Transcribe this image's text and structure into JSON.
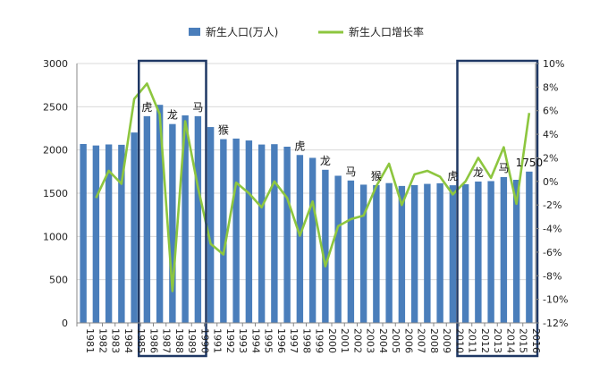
{
  "chart_data": {
    "type": "bar+line",
    "title": "",
    "legend": [
      {
        "name": "新生人口(万人)",
        "kind": "bar",
        "color": "#4a7ebb"
      },
      {
        "name": "新生人口增长率",
        "kind": "line",
        "color": "#8dc63f"
      }
    ],
    "categories": [
      "1981",
      "1982",
      "1983",
      "1984",
      "1985",
      "1986",
      "1987",
      "1988",
      "1989",
      "1990",
      "1991",
      "1992",
      "1993",
      "1994",
      "1995",
      "1996",
      "1997",
      "1998",
      "1999",
      "2000",
      "2001",
      "2002",
      "2003",
      "2004",
      "2005",
      "2006",
      "2007",
      "2008",
      "2009",
      "2010",
      "2011",
      "2012",
      "2013",
      "2014",
      "2015",
      "2016"
    ],
    "series": [
      {
        "name": "新生人口(万人)",
        "type": "bar",
        "axis": "left",
        "values": [
          2069,
          2052,
          2064,
          2060,
          2202,
          2391,
          2522,
          2300,
          2400,
          2391,
          2265,
          2125,
          2132,
          2110,
          2063,
          2067,
          2038,
          1942,
          1909,
          1771,
          1702,
          1647,
          1599,
          1593,
          1617,
          1584,
          1594,
          1608,
          1615,
          1592,
          1604,
          1635,
          1640,
          1687,
          1655,
          1750
        ]
      },
      {
        "name": "新生人口增长率",
        "type": "line",
        "axis": "right",
        "values": [
          null,
          -1.4,
          0.9,
          -0.2,
          7.0,
          8.3,
          5.7,
          -9.3,
          5.1,
          -0.5,
          -5.3,
          -6.2,
          -0.1,
          -1.0,
          -2.2,
          0.0,
          -1.4,
          -4.6,
          -1.7,
          -7.2,
          -3.8,
          -3.2,
          -2.9,
          -0.4,
          1.5,
          -2.0,
          0.6,
          0.9,
          0.4,
          -1.1,
          0.0,
          2.0,
          0.3,
          2.9,
          -1.9,
          5.8
        ]
      }
    ],
    "y_left": {
      "min": 0,
      "max": 3000,
      "step": 500,
      "ticks": [
        "0",
        "500",
        "1000",
        "1500",
        "2000",
        "2500",
        "3000"
      ]
    },
    "y_right": {
      "min": -12,
      "max": 10,
      "step": 2,
      "ticks": [
        "-12%",
        "-10%",
        "-8%",
        "-6%",
        "-4%",
        "-2%",
        "0%",
        "2%",
        "4%",
        "6%",
        "8%",
        "10%"
      ]
    },
    "grid": "horizontal",
    "legend_position": "top",
    "annotations": [
      {
        "text": "虎",
        "category": "1986"
      },
      {
        "text": "龙",
        "category": "1988"
      },
      {
        "text": "马",
        "category": "1990"
      },
      {
        "text": "猴",
        "category": "1992"
      },
      {
        "text": "虎",
        "category": "1998"
      },
      {
        "text": "龙",
        "category": "2000"
      },
      {
        "text": "马",
        "category": "2002"
      },
      {
        "text": "猴",
        "category": "2004"
      },
      {
        "text": "虎",
        "category": "2010"
      },
      {
        "text": "龙",
        "category": "2012"
      },
      {
        "text": "马",
        "category": "2014"
      },
      {
        "text": "1750",
        "category": "2016"
      }
    ],
    "highlight_ranges": [
      {
        "from": "1986",
        "to": "1990"
      },
      {
        "from": "2011",
        "to": "2016"
      }
    ],
    "colors": {
      "bar": "#4a7ebb",
      "line": "#8dc63f",
      "highlight": "#1f3864",
      "grid": "#d9d9d9"
    }
  }
}
